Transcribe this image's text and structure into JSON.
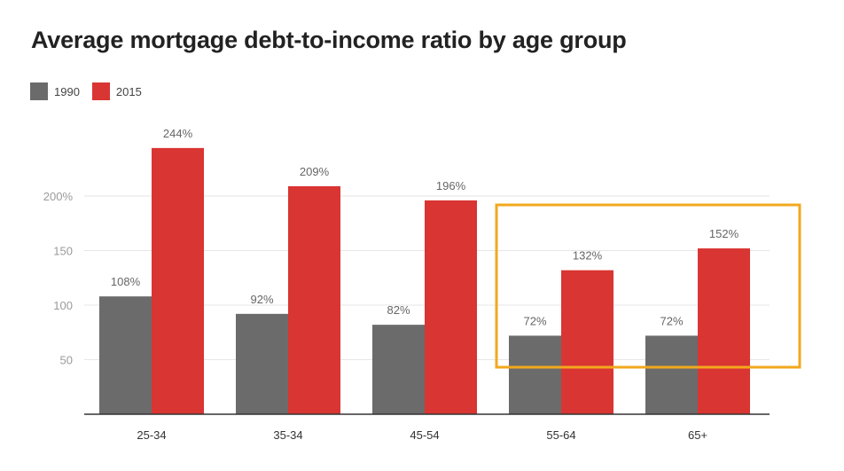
{
  "title": "Average mortgage debt-to-income ratio by age group",
  "colors": {
    "series_1990": "#6b6b6b",
    "series_2015": "#d93532",
    "highlight": "#f2a81d",
    "axis": "#333333",
    "grid": "#e6e6e6"
  },
  "chart_data": {
    "type": "bar",
    "title": "Average mortgage debt-to-income ratio by age group",
    "xlabel": "",
    "ylabel": "",
    "categories": [
      "25-34",
      "35-34",
      "45-54",
      "55-64",
      "65+"
    ],
    "series": [
      {
        "name": "1990",
        "values": [
          108,
          92,
          82,
          72,
          72
        ],
        "labels": [
          "108%",
          "92%",
          "82%",
          "72%",
          "72%"
        ]
      },
      {
        "name": "2015",
        "values": [
          244,
          209,
          196,
          132,
          152
        ],
        "labels": [
          "244%",
          "209%",
          "196%",
          "132%",
          "152%"
        ]
      }
    ],
    "ylim": [
      0,
      250
    ],
    "yticks": [
      {
        "value": 50,
        "label": "50"
      },
      {
        "value": 100,
        "label": "100"
      },
      {
        "value": 150,
        "label": "150"
      },
      {
        "value": 200,
        "label": "200%"
      }
    ],
    "grid": true,
    "legend_position": "top-left",
    "highlight_categories": [
      "55-64",
      "65+"
    ]
  }
}
